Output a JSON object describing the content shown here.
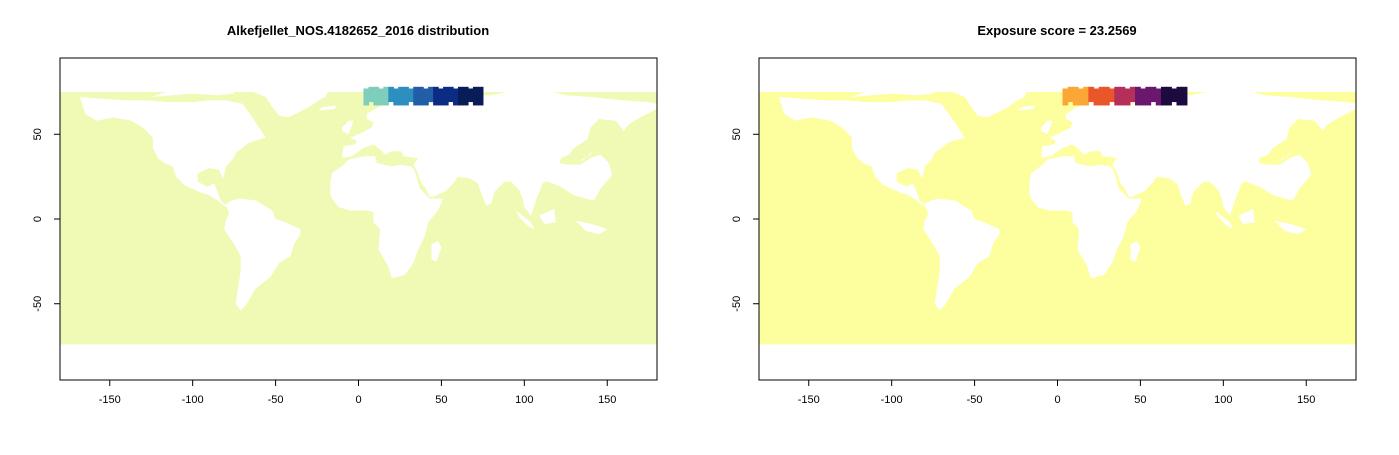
{
  "chart_data": [
    {
      "type": "heatmap",
      "title": "Alkefjellet_NOS.4182652_2016 distribution",
      "xlabel": "",
      "ylabel": "",
      "xlim": [
        -180,
        180
      ],
      "ylim": [
        -95,
        95
      ],
      "x_ticks": [
        -150,
        -100,
        -50,
        0,
        50,
        100,
        150
      ],
      "y_ticks": [
        -50,
        0,
        50
      ],
      "x_tick_labels": [
        "-150",
        "-100",
        "-50",
        "0",
        "50",
        "100",
        "150"
      ],
      "y_tick_labels": [
        "-50",
        "0",
        "50"
      ],
      "ocean_color": "#f0fab5",
      "land_color": "#ffffff",
      "hotspot": {
        "lon_range": [
          3,
          75
        ],
        "lat_range": [
          67,
          78
        ],
        "palette": [
          "#7fcdbb",
          "#2c8fbf",
          "#225ea8",
          "#0c2c84",
          "#081d58"
        ]
      }
    },
    {
      "type": "heatmap",
      "title": "Exposure score = 23.2569",
      "xlabel": "",
      "ylabel": "",
      "xlim": [
        -180,
        180
      ],
      "ylim": [
        -95,
        95
      ],
      "x_ticks": [
        -150,
        -100,
        -50,
        0,
        50,
        100,
        150
      ],
      "y_ticks": [
        -50,
        0,
        50
      ],
      "x_tick_labels": [
        "-150",
        "-100",
        "-50",
        "0",
        "50",
        "100",
        "150"
      ],
      "y_tick_labels": [
        "-50",
        "0",
        "50"
      ],
      "ocean_color": "#fdfe9d",
      "land_color": "#ffffff",
      "hotspot": {
        "lon_range": [
          3,
          78
        ],
        "lat_range": [
          67,
          78
        ],
        "palette": [
          "#fca636",
          "#e8562a",
          "#b52f5b",
          "#6a176e",
          "#1d0b3f"
        ]
      }
    }
  ]
}
